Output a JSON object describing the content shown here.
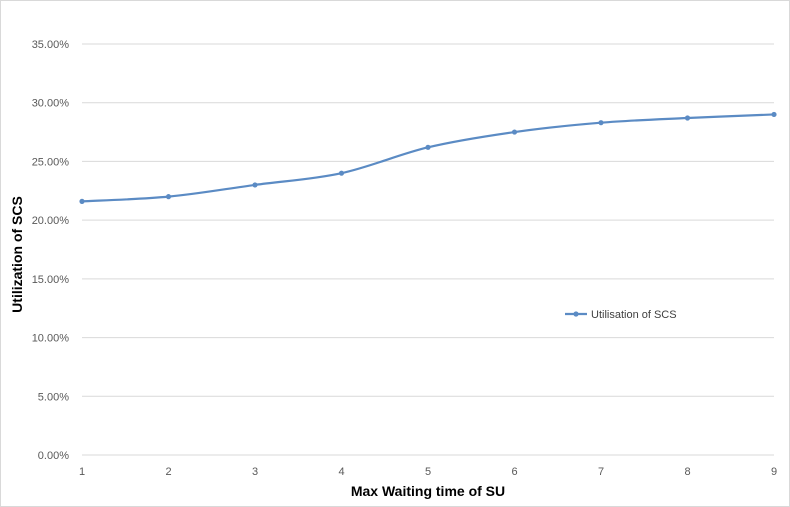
{
  "chart_data": {
    "type": "line",
    "title": "",
    "xlabel": "Max Waiting time of SU",
    "ylabel": "Utilization of SCS",
    "x": [
      1,
      2,
      3,
      4,
      5,
      6,
      7,
      8,
      9
    ],
    "series": [
      {
        "name": "Utilisation of SCS",
        "values": [
          21.6,
          22.0,
          23.0,
          24.0,
          26.2,
          27.5,
          28.3,
          28.7,
          29.0
        ],
        "color": "#5b8bc4"
      }
    ],
    "ylim": [
      0,
      35
    ],
    "y_ticks": [
      0,
      5,
      10,
      15,
      20,
      25,
      30,
      35
    ],
    "y_tick_labels": [
      "0.00%",
      "5.00%",
      "10.00%",
      "15.00%",
      "20.00%",
      "25.00%",
      "30.00%",
      "35.00%"
    ],
    "x_tick_labels": [
      "1",
      "2",
      "3",
      "4",
      "5",
      "6",
      "7",
      "8",
      "9"
    ],
    "grid": true,
    "gridline_color": "#d9d9d9",
    "legend_position": "right"
  }
}
